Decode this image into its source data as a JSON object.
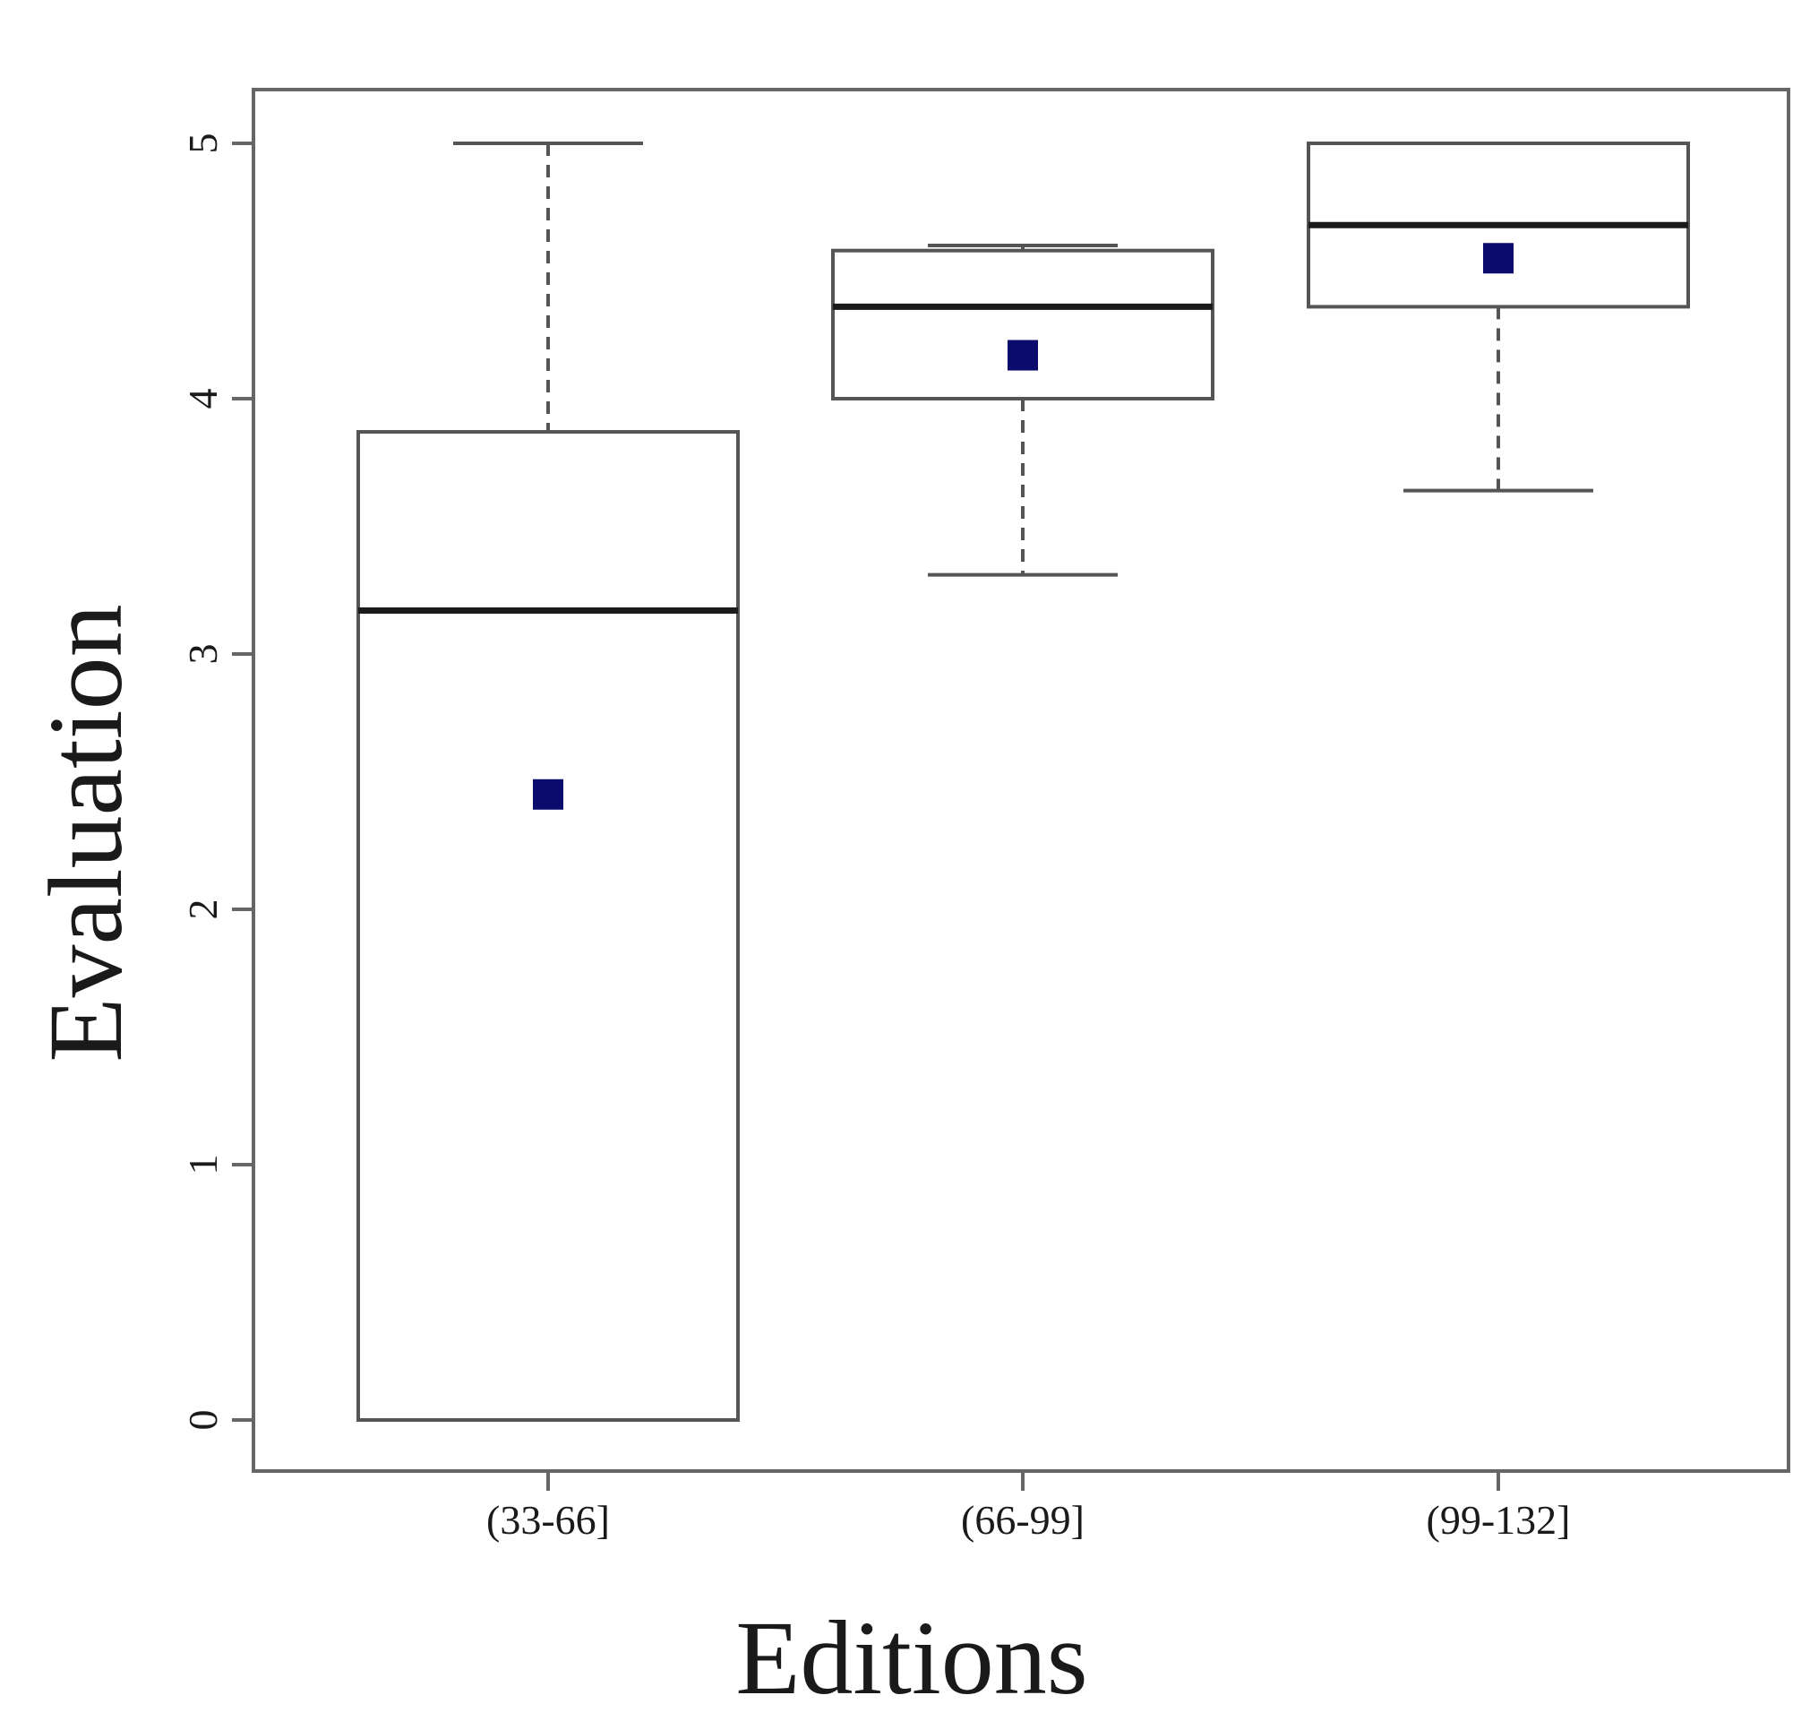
{
  "chart_data": {
    "type": "box",
    "xlabel": "Editions",
    "ylabel": "Evaluation",
    "ylim": [
      -0.2,
      5.2
    ],
    "yticks": [
      0,
      1,
      2,
      3,
      4,
      5
    ],
    "categories": [
      "(33-66]",
      "(66-99]",
      "(99-132]"
    ],
    "boxes": [
      {
        "category": "(33-66]",
        "whisker_low": 0,
        "q1": 0,
        "median": 3.17,
        "q3": 3.87,
        "whisker_high": 5,
        "mean": 2.45
      },
      {
        "category": "(66-99]",
        "whisker_low": 3.31,
        "q1": 4.0,
        "median": 4.36,
        "q3": 4.58,
        "whisker_high": 4.6,
        "mean": 4.17
      },
      {
        "category": "(99-132]",
        "whisker_low": 3.64,
        "q1": 4.36,
        "median": 4.68,
        "q3": 5.0,
        "whisker_high": 5.0,
        "mean": 4.55
      }
    ],
    "grid": false,
    "legend": "none",
    "colors": {
      "mean_marker": "#0b0b6e",
      "box_stroke": "#555555",
      "median": "#1a1a1a",
      "frame": "#666666"
    }
  }
}
